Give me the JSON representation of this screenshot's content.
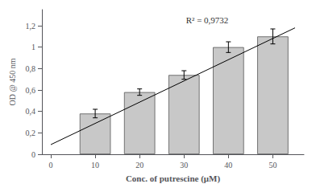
{
  "chart_data": {
    "type": "bar",
    "xlabel": "Conc. of putrescine (μM)",
    "ylabel": "OD @ 450 nm",
    "annotations": [
      "R² = 0,9732"
    ],
    "series": [
      {
        "type": "bar",
        "color": "#c8c8c8",
        "x": [
          10,
          20,
          30,
          40,
          50
        ],
        "values": [
          0.38,
          0.58,
          0.74,
          1.0,
          1.1
        ],
        "errors": [
          0.04,
          0.03,
          0.04,
          0.05,
          0.07
        ]
      },
      {
        "type": "line",
        "color": "#000000",
        "x": [
          0,
          55
        ],
        "values": [
          0.09,
          1.18
        ]
      }
    ],
    "xlim": [
      -2,
      57
    ],
    "xticks": [
      0,
      10,
      20,
      30,
      40,
      50
    ],
    "ylim": [
      0,
      1.35
    ],
    "yticks": [
      0,
      {
        "value": 0.2,
        "label": "0,2"
      },
      {
        "value": 0.4,
        "label": "0,4"
      },
      {
        "value": 0.6,
        "label": "0,6"
      },
      {
        "value": 0.8,
        "label": "0,8"
      },
      1,
      {
        "value": 1.2,
        "label": "1,2"
      }
    ],
    "grid": false
  }
}
